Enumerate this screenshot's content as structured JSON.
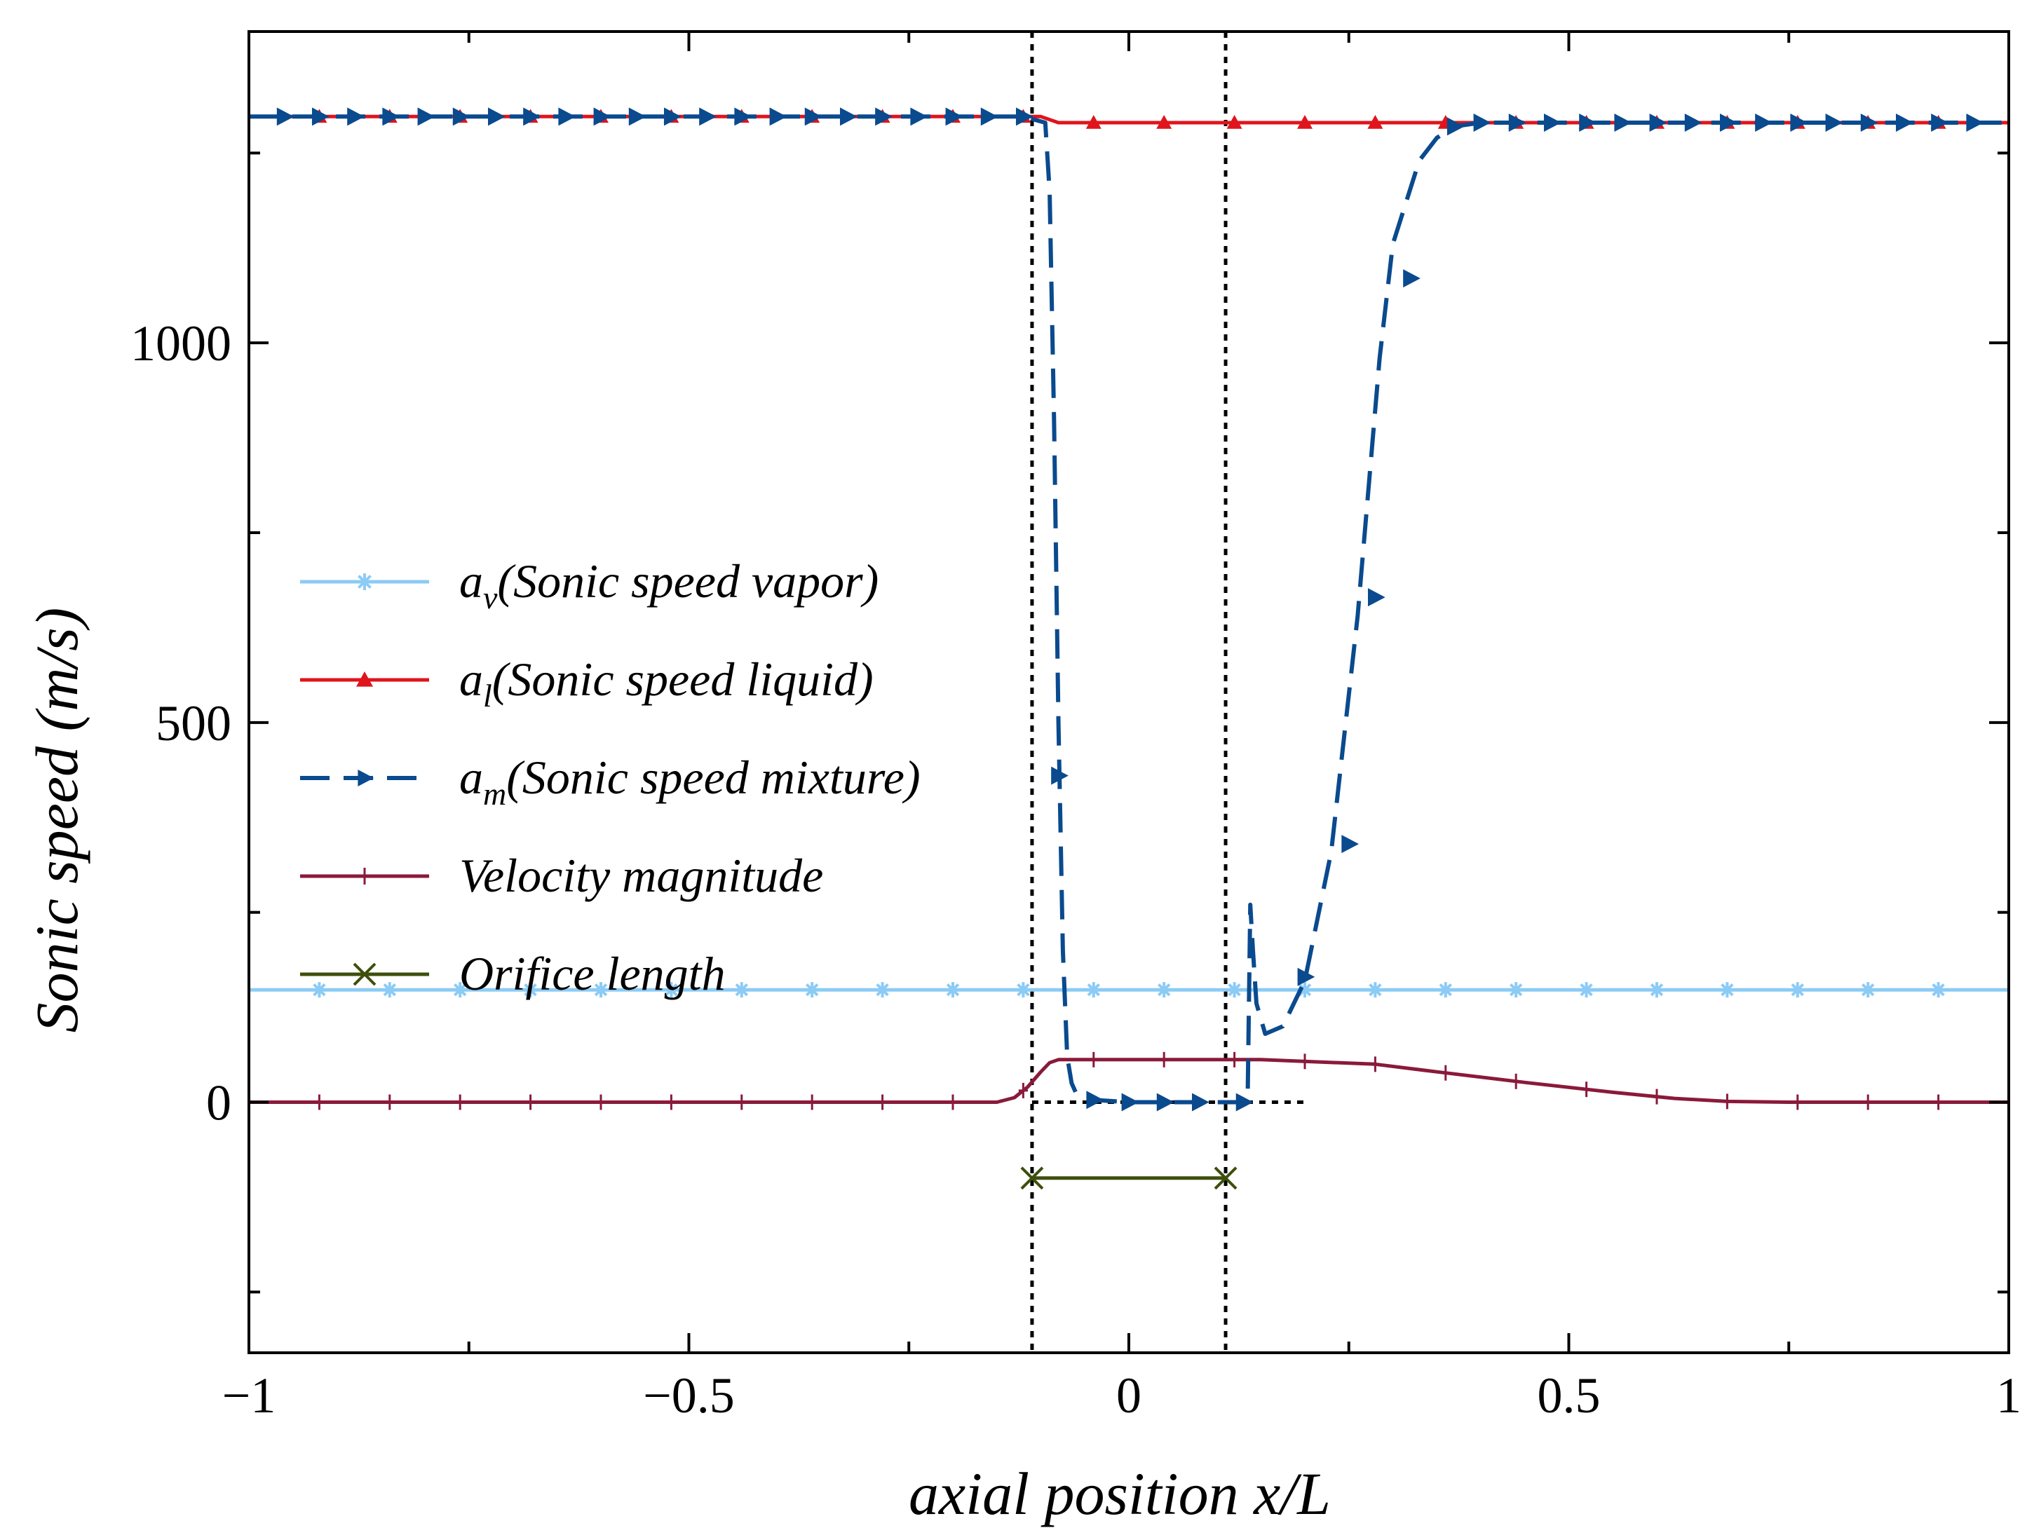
{
  "chart_data": {
    "type": "line",
    "title": "",
    "xlabel": "axial position x/L",
    "ylabel": "Sonic speed  (m/s)",
    "xlim": [
      -1,
      1
    ],
    "ylim": [
      -330,
      1410
    ],
    "x_ticks": [
      -1,
      -0.5,
      0,
      0.5,
      1
    ],
    "x_tick_labels": [
      "−1",
      "−0.5",
      "0",
      "0.5",
      "1"
    ],
    "x_minor_ticks": [
      -0.75,
      -0.25,
      0.25,
      0.75
    ],
    "y_ticks": [
      0,
      500,
      1000
    ],
    "y_tick_labels": [
      "0",
      "500",
      "1000"
    ],
    "y_minor_ticks": [
      -250,
      250,
      750,
      1250
    ],
    "grid": false,
    "legend_position": "center-left",
    "orifice_bounds": [
      -0.11,
      0.11
    ],
    "zero_reference": 0,
    "series": [
      {
        "name": "a_v (Sonic speed vapor)",
        "symbol": "a",
        "subscript": "v",
        "label": "(Sonic speed vapor)",
        "color": "#8ccbf5",
        "marker": "star",
        "dash": "solid",
        "x": [
          -1,
          1
        ],
        "y": [
          148,
          148
        ],
        "marker_x": [
          -0.92,
          -0.84,
          -0.76,
          -0.68,
          -0.6,
          -0.52,
          -0.44,
          -0.36,
          -0.28,
          -0.2,
          -0.12,
          -0.04,
          0.04,
          0.12,
          0.2,
          0.28,
          0.36,
          0.44,
          0.52,
          0.6,
          0.68,
          0.76,
          0.84,
          0.92
        ]
      },
      {
        "name": "a_l (Sonic speed liquid)",
        "symbol": "a",
        "subscript": "l",
        "label": "(Sonic speed liquid)",
        "color": "#e0141c",
        "marker": "triangle",
        "dash": "solid",
        "x": [
          -1,
          -0.1,
          -0.08,
          1
        ],
        "y": [
          1298,
          1298,
          1290,
          1290
        ],
        "marker_x": [
          -0.92,
          -0.84,
          -0.76,
          -0.68,
          -0.6,
          -0.52,
          -0.44,
          -0.36,
          -0.28,
          -0.2,
          -0.12,
          -0.04,
          0.04,
          0.12,
          0.2,
          0.28,
          0.36,
          0.44,
          0.52,
          0.6,
          0.68,
          0.76,
          0.84,
          0.92
        ]
      },
      {
        "name": "a_m (Sonic speed mixture)",
        "symbol": "a",
        "subscript": "m",
        "label": "(Sonic speed mixture)",
        "color": "#0a4a8e",
        "marker": "triangle-right",
        "dash": "dashed",
        "x": [
          -1,
          -0.12,
          -0.095,
          -0.09,
          -0.085,
          -0.08,
          -0.075,
          -0.07,
          -0.065,
          -0.06,
          -0.05,
          -0.04,
          0.0,
          0.06,
          0.135,
          0.138,
          0.141,
          0.145,
          0.155,
          0.175,
          0.2,
          0.23,
          0.26,
          0.285,
          0.3,
          0.33,
          0.35,
          0.37,
          0.4,
          0.45,
          0.6,
          0.8,
          1
        ],
        "y": [
          1298,
          1298,
          1290,
          1200,
          900,
          500,
          200,
          60,
          25,
          12,
          6,
          3,
          0,
          0,
          0,
          260,
          200,
          130,
          90,
          100,
          160,
          330,
          640,
          980,
          1130,
          1240,
          1270,
          1285,
          1290,
          1290,
          1290,
          1290,
          1290
        ],
        "marker_points": [
          [
            -0.96,
            1298
          ],
          [
            -0.92,
            1298
          ],
          [
            -0.88,
            1298
          ],
          [
            -0.84,
            1298
          ],
          [
            -0.8,
            1298
          ],
          [
            -0.76,
            1298
          ],
          [
            -0.72,
            1298
          ],
          [
            -0.68,
            1298
          ],
          [
            -0.64,
            1298
          ],
          [
            -0.6,
            1298
          ],
          [
            -0.56,
            1298
          ],
          [
            -0.52,
            1298
          ],
          [
            -0.48,
            1298
          ],
          [
            -0.44,
            1298
          ],
          [
            -0.4,
            1298
          ],
          [
            -0.36,
            1298
          ],
          [
            -0.32,
            1298
          ],
          [
            -0.28,
            1298
          ],
          [
            -0.24,
            1298
          ],
          [
            -0.2,
            1298
          ],
          [
            -0.16,
            1298
          ],
          [
            -0.12,
            1298
          ],
          [
            -0.08,
            430
          ],
          [
            -0.04,
            3
          ],
          [
            0.0,
            0
          ],
          [
            0.04,
            0
          ],
          [
            0.08,
            0
          ],
          [
            0.13,
            0
          ],
          [
            0.2,
            165
          ],
          [
            0.25,
            340
          ],
          [
            0.28,
            665
          ],
          [
            0.32,
            1085
          ],
          [
            0.37,
            1285
          ],
          [
            0.4,
            1290
          ],
          [
            0.44,
            1290
          ],
          [
            0.48,
            1290
          ],
          [
            0.52,
            1290
          ],
          [
            0.56,
            1290
          ],
          [
            0.6,
            1290
          ],
          [
            0.64,
            1290
          ],
          [
            0.68,
            1290
          ],
          [
            0.72,
            1290
          ],
          [
            0.76,
            1290
          ],
          [
            0.8,
            1290
          ],
          [
            0.84,
            1290
          ],
          [
            0.88,
            1290
          ],
          [
            0.92,
            1290
          ],
          [
            0.96,
            1290
          ]
        ]
      },
      {
        "name": "Velocity magnitude",
        "symbol": "",
        "subscript": "",
        "label": "Velocity magnitude",
        "color": "#8a1a3a",
        "marker": "plus",
        "dash": "solid",
        "x": [
          -1,
          -0.15,
          -0.13,
          -0.115,
          -0.1,
          -0.09,
          -0.08,
          0.0,
          0.15,
          0.28,
          0.35,
          0.45,
          0.55,
          0.62,
          0.68,
          0.75,
          1
        ],
        "y": [
          0,
          0,
          6,
          20,
          40,
          52,
          56,
          56,
          56,
          50,
          40,
          26,
          13,
          5,
          1,
          0,
          0
        ],
        "marker_x": [
          -0.92,
          -0.84,
          -0.76,
          -0.68,
          -0.6,
          -0.52,
          -0.44,
          -0.36,
          -0.28,
          -0.2,
          -0.12,
          -0.04,
          0.04,
          0.12,
          0.2,
          0.28,
          0.36,
          0.44,
          0.52,
          0.6,
          0.68,
          0.76,
          0.84,
          0.92
        ]
      },
      {
        "name": "Orifice length",
        "symbol": "",
        "subscript": "",
        "label": "Orifice length",
        "color": "#3d4f0c",
        "marker": "x",
        "dash": "solid",
        "x": [
          -0.11,
          0.11
        ],
        "y": [
          -100,
          -100
        ],
        "marker_x": [
          -0.11,
          0.11
        ]
      }
    ]
  }
}
